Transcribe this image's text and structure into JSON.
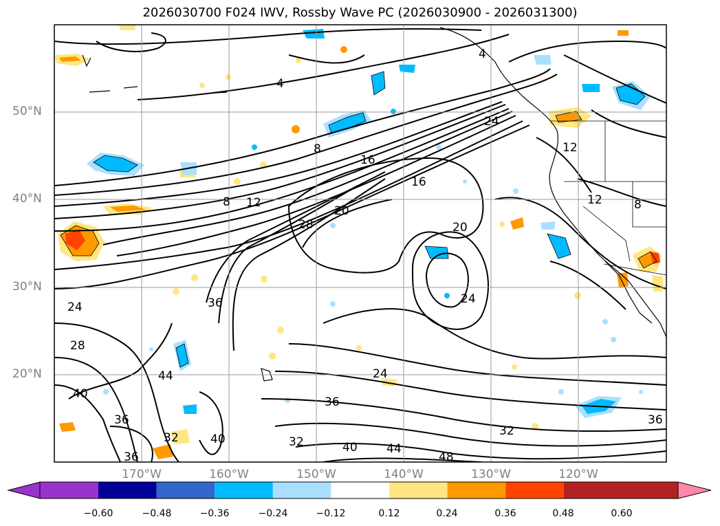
{
  "title": "2026030700 F024 IWV, Rossby Wave PC (2026030900 - 2026031300)",
  "lat_labels": [
    "50°N",
    "40°N",
    "30°N",
    "20°N"
  ],
  "lon_labels": [
    "170°W",
    "160°W",
    "150°W",
    "140°W",
    "130°W",
    "120°W"
  ],
  "colorbar": {
    "ticks": [
      "−0.60",
      "−0.48",
      "−0.36",
      "−0.24",
      "−0.12",
      "0.12",
      "0.24",
      "0.36",
      "0.48",
      "0.60"
    ],
    "colors": [
      "#9933cc",
      "#000099",
      "#3366cc",
      "#00bbff",
      "#aadfff",
      "#ffffff",
      "#ffe680",
      "#ff9900",
      "#ff4400",
      "#b22222",
      "#ff88aa"
    ]
  },
  "contour_labels": [
    "4",
    "4",
    "8",
    "8",
    "8",
    "12",
    "12",
    "12",
    "16",
    "16",
    "20",
    "20",
    "24",
    "24",
    "24",
    "24",
    "28",
    "28",
    "32",
    "32",
    "32",
    "36",
    "36",
    "36",
    "36",
    "36",
    "40",
    "40",
    "40",
    "44",
    "44",
    "48"
  ],
  "shading_colors": {
    "pos_light": "#ffe680",
    "pos_med": "#ff9900",
    "pos_strong": "#ff4400",
    "neg_light": "#aadfff",
    "neg_med": "#00bbff"
  }
}
